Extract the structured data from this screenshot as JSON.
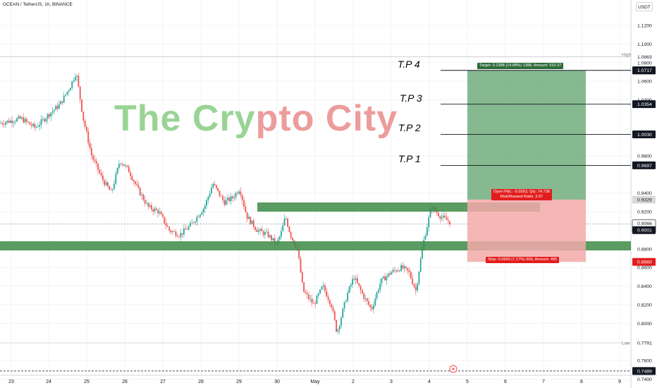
{
  "header": {
    "title": "OCEAN / TetherUS, 1h, BINANCE",
    "currency_button": "USDT"
  },
  "watermark": {
    "part1": "The Cry",
    "part2": "pto City"
  },
  "targets": [
    {
      "label": "T.P 4",
      "price": 1.0717,
      "tag": "1.0717"
    },
    {
      "label": "T.P 3",
      "price": 1.0354,
      "tag": "1.0354"
    },
    {
      "label": "T.P 2",
      "price": 1.003,
      "tag": "1.0030"
    },
    {
      "label": "T.P 1",
      "price": 0.9697,
      "tag": "0.9697"
    }
  ],
  "position": {
    "target_text": "Target: 0.1388 (14.88%) 1388, Amount: 510.37",
    "open_text_line1": "Open P&L: -0.0263, Qty: 74.738",
    "open_text_line2": "Risk/Reward Ratio: 2.07",
    "stop_text": "Stop: 0.0669 (7.17%) 669, Amount: 495",
    "target_price": 1.0717,
    "entry_price": 0.9329,
    "stop_price": 0.866
  },
  "price_axis": {
    "labels": [
      "1.1200",
      "1.1000",
      "1.0800",
      "1.0600",
      "1.0400",
      "0.9800",
      "0.9400",
      "0.9200",
      "0.8800",
      "0.8600",
      "0.8400",
      "0.8200",
      "0.8000",
      "0.7600",
      "0.7400"
    ],
    "high_label": "High",
    "high_value": "1.0863",
    "high_price": 1.0863,
    "low_label": "Low",
    "low_value": "0.7791",
    "low_price": 0.7791,
    "dashed_value": "0.7489",
    "dashed_price": 0.7489,
    "current_value": "0.9066",
    "current_countdown": "58:59",
    "current_price": 0.9066,
    "entry_tag": "0.9329",
    "support_tag": "0.9001",
    "support_price": 0.9001,
    "stop_tag": "0.8660",
    "target_tag": "1.0717"
  },
  "time_axis": {
    "labels": [
      "23",
      "24",
      "25",
      "26",
      "27",
      "28",
      "29",
      "30",
      "May",
      "2",
      "3",
      "4",
      "5",
      "6",
      "7",
      "8",
      "9"
    ]
  },
  "colors": {
    "up": "#26a69a",
    "down": "#ef5350",
    "zone": "#3d8b47",
    "target_fill": "#5ea16a",
    "stop_fill": "#f3a9a9",
    "tag_dark": "#131722",
    "tag_red": "#e11d1d"
  },
  "icons": {
    "event": "lightning-event-icon"
  }
}
